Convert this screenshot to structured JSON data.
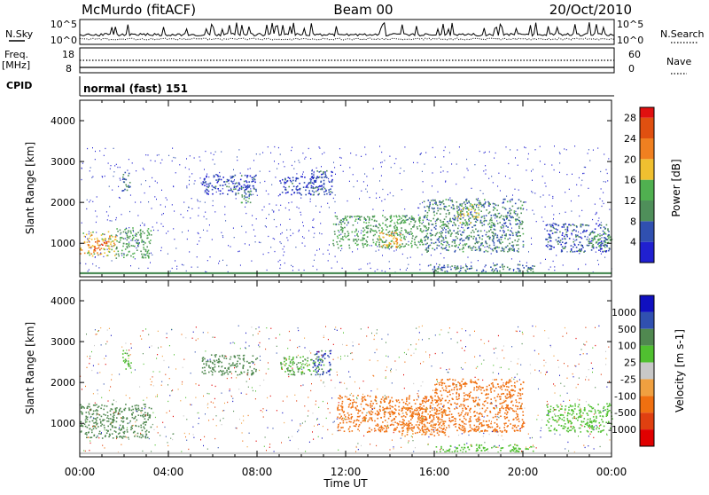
{
  "header": {
    "site": "McMurdo (fitACF)",
    "beam": "Beam 00",
    "date": "20/Oct/2010"
  },
  "strip": {
    "nsky_label": "N.Sky",
    "nsky_ticks": [
      "10^5",
      "10^0"
    ],
    "nsearch_label": "N.Search",
    "nsearch_ticks": [
      "10^5",
      "10^0"
    ],
    "freq_label": "Freq.",
    "freq_unit": "[MHz]",
    "freq_ticks": [
      "18",
      "8"
    ],
    "nave_label": "Nave",
    "nave_ticks": [
      "60",
      "0"
    ],
    "cpid_label": "CPID",
    "cpid_text": "normal (fast) 151"
  },
  "colors": {
    "power": [
      "#2020d0",
      "#3050b0",
      "#4f8f5a",
      "#50b050",
      "#f0c030",
      "#f08020",
      "#e05010",
      "#e01010"
    ],
    "velocity": [
      "#e00000",
      "#e04010",
      "#f07010",
      "#f0a040",
      "#c8c8c8",
      "#50c030",
      "#508850",
      "#3050b0",
      "#1010c0"
    ]
  },
  "chart_data": [
    {
      "type": "heatmap",
      "panel": "power",
      "ylabel": "Slant Range [km]",
      "xlabel": "Time UT",
      "xlim": [
        "00:00",
        "24:00"
      ],
      "ylim": [
        180,
        4500
      ],
      "x_ticks": [
        "00:00",
        "04:00",
        "08:00",
        "12:00",
        "16:00",
        "20:00",
        "00:00"
      ],
      "y_ticks": [
        1000,
        2000,
        3000,
        4000
      ],
      "colorbar": {
        "label": "Power [dB]",
        "ticks": [
          4,
          8,
          12,
          16,
          20,
          24,
          28
        ],
        "range": [
          0,
          30
        ],
        "levels": [
          0,
          4,
          8,
          12,
          16,
          20,
          24,
          28,
          30
        ]
      },
      "regions": [
        {
          "t": [
            0.0,
            1.6
          ],
          "r": [
            700,
            1300
          ],
          "p": 18
        },
        {
          "t": [
            0.6,
            1.2
          ],
          "r": [
            850,
            1100
          ],
          "p": 26
        },
        {
          "t": [
            1.6,
            3.2
          ],
          "r": [
            650,
            1400
          ],
          "p": 12
        },
        {
          "t": [
            1.9,
            2.3
          ],
          "r": [
            2300,
            2800
          ],
          "p": 8
        },
        {
          "t": [
            5.5,
            8.0
          ],
          "r": [
            2200,
            2700
          ],
          "p": 5
        },
        {
          "t": [
            7.2,
            7.7
          ],
          "r": [
            2000,
            2400
          ],
          "p": 10
        },
        {
          "t": [
            9.0,
            11.0
          ],
          "r": [
            2200,
            2650
          ],
          "p": 5
        },
        {
          "t": [
            10.4,
            11.4
          ],
          "r": [
            2200,
            2800
          ],
          "p": 6
        },
        {
          "t": [
            11.4,
            15.5
          ],
          "r": [
            900,
            1700
          ],
          "p": 12
        },
        {
          "t": [
            13.5,
            14.5
          ],
          "r": [
            900,
            1300
          ],
          "p": 20
        },
        {
          "t": [
            15.5,
            20.0
          ],
          "r": [
            800,
            2100
          ],
          "p": 9
        },
        {
          "t": [
            17.0,
            18.0
          ],
          "r": [
            1500,
            2000
          ],
          "p": 15
        },
        {
          "t": [
            15.8,
            20.5
          ],
          "r": [
            300,
            500
          ],
          "p": 8
        },
        {
          "t": [
            21.0,
            23.9
          ],
          "r": [
            800,
            1500
          ],
          "p": 6
        },
        {
          "t": [
            23.0,
            24.0
          ],
          "r": [
            900,
            1300
          ],
          "p": 12
        }
      ]
    },
    {
      "type": "heatmap",
      "panel": "velocity",
      "ylabel": "Slant Range [km]",
      "xlabel": "Time UT",
      "xlim": [
        "00:00",
        "24:00"
      ],
      "ylim": [
        180,
        4500
      ],
      "x_ticks": [
        "00:00",
        "04:00",
        "08:00",
        "12:00",
        "16:00",
        "20:00",
        "00:00"
      ],
      "y_ticks": [
        1000,
        2000,
        3000,
        4000
      ],
      "colorbar": {
        "label": "Velocity [m s-1]",
        "tick_labels": [
          "1000",
          "500",
          "100",
          "25",
          "-25",
          "-100",
          "-500",
          "-1000"
        ],
        "levels": [
          -1500,
          -1000,
          -500,
          -100,
          -25,
          25,
          100,
          500,
          1000,
          1500
        ]
      },
      "regions": [
        {
          "t": [
            0.0,
            3.2
          ],
          "r": [
            650,
            1500
          ],
          "v": 300
        },
        {
          "t": [
            1.9,
            2.3
          ],
          "r": [
            2300,
            2800
          ],
          "v": 80
        },
        {
          "t": [
            5.5,
            8.0
          ],
          "r": [
            2200,
            2700
          ],
          "v": 200
        },
        {
          "t": [
            9.0,
            11.0
          ],
          "r": [
            2200,
            2650
          ],
          "v": 90
        },
        {
          "t": [
            10.5,
            11.3
          ],
          "r": [
            2200,
            2800
          ],
          "v": 800
        },
        {
          "t": [
            11.6,
            16.0
          ],
          "r": [
            800,
            1700
          ],
          "v": -300
        },
        {
          "t": [
            14.5,
            16.5
          ],
          "r": [
            700,
            1400
          ],
          "v": -120
        },
        {
          "t": [
            16.0,
            20.0
          ],
          "r": [
            800,
            2100
          ],
          "v": -200
        },
        {
          "t": [
            16.0,
            20.5
          ],
          "r": [
            300,
            500
          ],
          "v": 60
        },
        {
          "t": [
            21.0,
            24.0
          ],
          "r": [
            800,
            1500
          ],
          "v": 60
        }
      ]
    }
  ]
}
